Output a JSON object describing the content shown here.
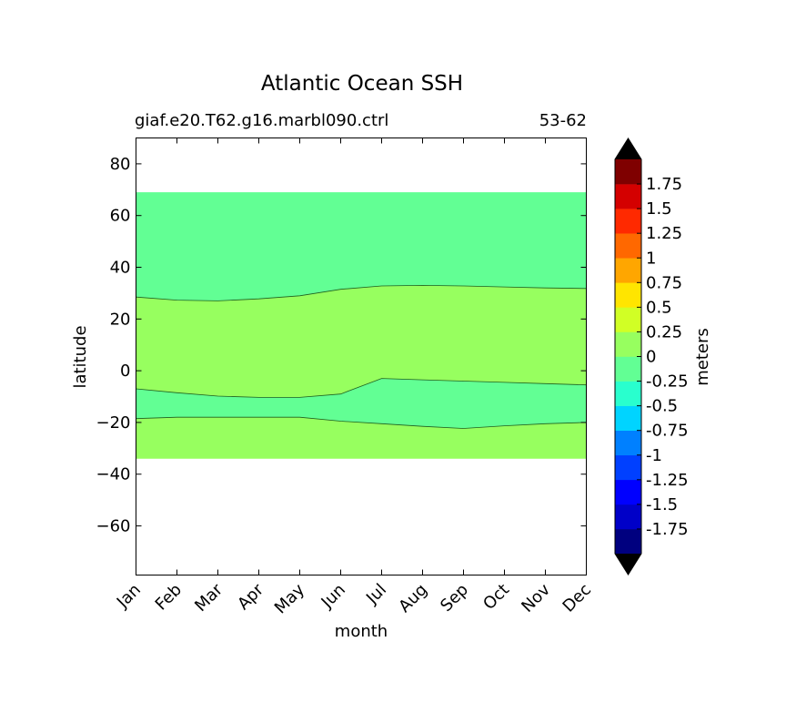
{
  "chart_data": {
    "type": "heatmap",
    "title": "Atlantic Ocean SSH",
    "subtitle_left": "giaf.e20.T62.g16.marbl090.ctrl",
    "subtitle_right": "53-62",
    "xlabel": "month",
    "ylabel": "latitude",
    "colorbar_label": "meters",
    "x_categories": [
      "Jan",
      "Feb",
      "Mar",
      "Apr",
      "May",
      "Jun",
      "Jul",
      "Aug",
      "Sep",
      "Oct",
      "Nov",
      "Dec"
    ],
    "ylim": [
      -79,
      90
    ],
    "y_ticks": [
      80,
      60,
      40,
      20,
      0,
      -20,
      -40,
      -60
    ],
    "data_lat_range": [
      -34,
      69
    ],
    "colorbar": {
      "levels": [
        -2,
        -1.75,
        -1.5,
        -1.25,
        -1,
        -0.75,
        -0.5,
        -0.25,
        0,
        0.25,
        0.5,
        0.75,
        1,
        1.25,
        1.5,
        1.75,
        2
      ],
      "tick_labels": [
        "1.75",
        "1.5",
        "1.25",
        "1",
        "0.75",
        "0.5",
        "0.25",
        "0",
        "-0.25",
        "-0.5",
        "-0.75",
        "-1",
        "-1.25",
        "-1.5",
        "-1.75"
      ],
      "colors": [
        "#00007f",
        "#0000c8",
        "#0000ff",
        "#0040ff",
        "#0080ff",
        "#00d4ff",
        "#29ffce",
        "#62ff94",
        "#97ff5f",
        "#d1ff25",
        "#ffe500",
        "#ffa600",
        "#ff6800",
        "#ff2900",
        "#d40000",
        "#7f0000"
      ],
      "extend_color": "#000000"
    },
    "regions": [
      {
        "value_range": [
          -0.25,
          0
        ],
        "color": "#62ff94",
        "upper_lat": [
          69,
          69,
          69,
          69,
          69,
          69,
          69,
          69,
          69,
          69,
          69,
          69
        ],
        "lower_lat": [
          28.5,
          27.3,
          27.0,
          27.8,
          29.0,
          31.5,
          32.8,
          33.0,
          32.8,
          32.4,
          32.0,
          31.8
        ]
      },
      {
        "value_range": [
          0,
          0.25
        ],
        "color": "#97ff5f",
        "upper_lat": [
          28.5,
          27.3,
          27.0,
          27.8,
          29.0,
          31.5,
          32.8,
          33.0,
          32.8,
          32.4,
          32.0,
          31.8
        ],
        "lower_lat": [
          -7.0,
          -8.5,
          -9.8,
          -10.3,
          -10.3,
          -9.0,
          -3.0,
          -3.5,
          -4.0,
          -4.5,
          -5.0,
          -5.5
        ]
      },
      {
        "value_range": [
          -0.25,
          0
        ],
        "color": "#62ff94",
        "upper_lat": [
          -7.0,
          -8.5,
          -9.8,
          -10.3,
          -10.3,
          -9.0,
          -3.0,
          -3.5,
          -4.0,
          -4.5,
          -5.0,
          -5.5
        ],
        "lower_lat": [
          -18.5,
          -18.0,
          -18.0,
          -18.0,
          -18.0,
          -19.5,
          -20.5,
          -21.5,
          -22.3,
          -21.3,
          -20.5,
          -20.0
        ]
      },
      {
        "value_range": [
          0,
          0.25
        ],
        "color": "#97ff5f",
        "upper_lat": [
          -18.5,
          -18.0,
          -18.0,
          -18.0,
          -18.0,
          -19.5,
          -20.5,
          -21.5,
          -22.3,
          -21.3,
          -20.5,
          -20.0
        ],
        "lower_lat": [
          -34,
          -34,
          -34,
          -34,
          -34,
          -34,
          -34,
          -34,
          -34,
          -34,
          -34,
          -34
        ]
      }
    ]
  }
}
